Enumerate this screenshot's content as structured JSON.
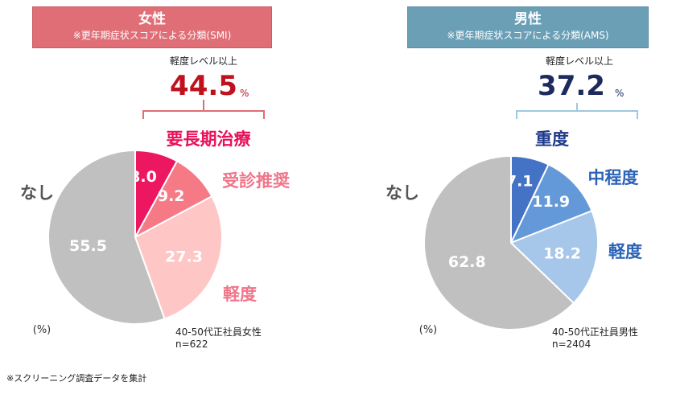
{
  "footnote": "※スクリーニング調査データを集計",
  "chart_data": [
    {
      "type": "pie",
      "title": "女性",
      "subtitle": "※更年期症状スコアによる分類(SMI)",
      "unit": "(%)",
      "sample_line1": "40-50代正社員女性",
      "sample_line2": "n=622",
      "summary_label": "軽度レベル以上",
      "summary_value": "44.5",
      "summary_unit": "%",
      "colors": {
        "header": "#e06e76",
        "summary": "#c0111e",
        "bracket": "#e06e76"
      },
      "slices": [
        {
          "label": "要長期治療",
          "value": 8.0,
          "display": "8.0",
          "color": "#ec1760",
          "label_color": "#e8115a"
        },
        {
          "label": "受診推奨",
          "value": 9.2,
          "display": "9.2",
          "color": "#f57a86",
          "label_color": "#f0758b"
        },
        {
          "label": "軽度",
          "value": 27.3,
          "display": "27.3",
          "color": "#ffc6c6",
          "label_color": "#f0758b"
        },
        {
          "label": "なし",
          "value": 55.5,
          "display": "55.5",
          "color": "#c0c0c0",
          "label_color": "#555555"
        }
      ]
    },
    {
      "type": "pie",
      "title": "男性",
      "subtitle": "※更年期症状スコアによる分類(AMS)",
      "unit": "(%)",
      "sample_line1": "40-50代正社員男性",
      "sample_line2": "n=2404",
      "summary_label": "軽度レベル以上",
      "summary_value": "37.2",
      "summary_unit": "%",
      "colors": {
        "header": "#6a9fb6",
        "summary": "#1c2a5e",
        "bracket": "#9ec8dd"
      },
      "slices": [
        {
          "label": "重度",
          "value": 7.1,
          "display": "7.1",
          "color": "#4472c4",
          "label_color": "#1f3a8a"
        },
        {
          "label": "中程度",
          "value": 11.9,
          "display": "11.9",
          "color": "#6399d8",
          "label_color": "#2b63b8"
        },
        {
          "label": "軽度",
          "value": 18.2,
          "display": "18.2",
          "color": "#a6c6ea",
          "label_color": "#2b63b8"
        },
        {
          "label": "なし",
          "value": 62.8,
          "display": "62.8",
          "color": "#c0c0c0",
          "label_color": "#555555"
        }
      ]
    }
  ]
}
